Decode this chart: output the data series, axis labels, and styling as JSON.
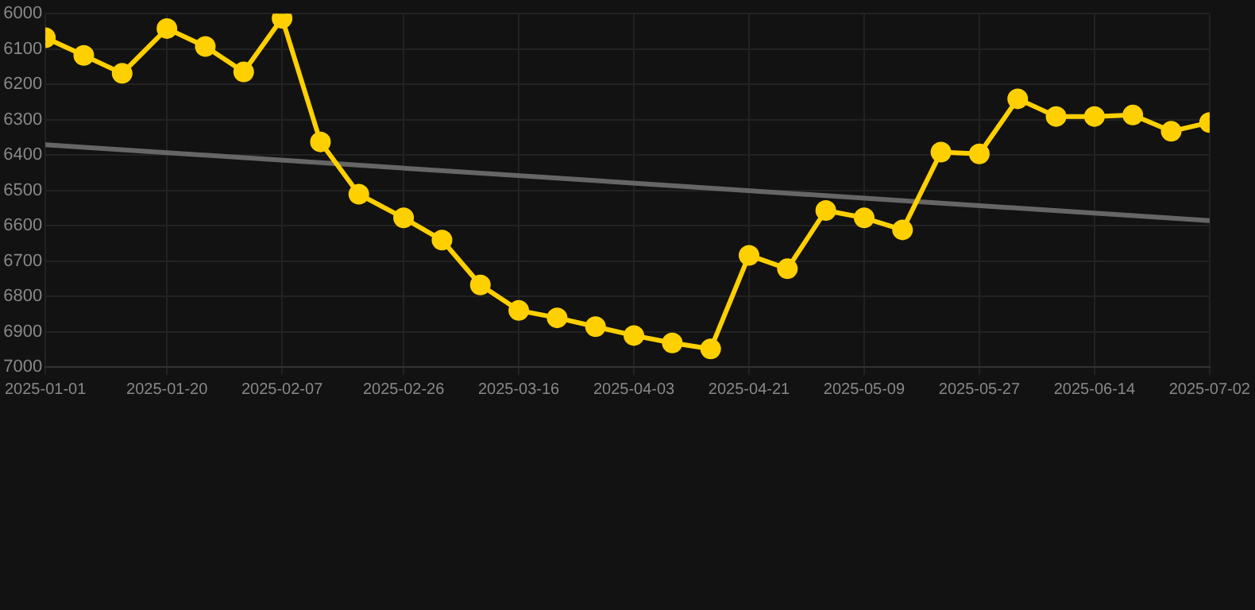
{
  "chart_data": {
    "type": "line",
    "x": [
      "2025-01-01",
      "2025-01-07",
      "2025-01-13",
      "2025-01-20",
      "2025-01-26",
      "2025-02-01",
      "2025-02-07",
      "2025-02-13",
      "2025-02-19",
      "2025-02-26",
      "2025-03-04",
      "2025-03-10",
      "2025-03-16",
      "2025-03-22",
      "2025-03-28",
      "2025-04-03",
      "2025-04-09",
      "2025-04-15",
      "2025-04-21",
      "2025-04-27",
      "2025-05-03",
      "2025-05-09",
      "2025-05-15",
      "2025-05-21",
      "2025-05-27",
      "2025-06-02",
      "2025-06-08",
      "2025-06-14",
      "2025-06-20",
      "2025-06-26",
      "2025-07-02"
    ],
    "series": [
      {
        "color": "#ffd000",
        "marker": "circle",
        "values": [
          6068,
          6118,
          6169,
          6042,
          6093,
          6165,
          6013,
          6363,
          6511,
          6578,
          6641,
          6768,
          6840,
          6861,
          6886,
          6911,
          6932,
          6949,
          6684,
          6722,
          6557,
          6578,
          6612,
          6392,
          6397,
          6241,
          6291,
          6291,
          6287,
          6333,
          6308
        ]
      },
      {
        "type": "line",
        "color": "#666666",
        "marker": "none",
        "x": [
          "2025-01-01",
          "2025-07-02"
        ],
        "values": [
          6371,
          6586
        ]
      }
    ],
    "xlim": [
      "2025-01-01",
      "2025-07-02"
    ],
    "xticks": [
      "2025-01-01",
      "2025-01-20",
      "2025-02-07",
      "2025-02-26",
      "2025-03-16",
      "2025-04-03",
      "2025-04-21",
      "2025-05-09",
      "2025-05-27",
      "2025-06-14",
      "2025-07-02"
    ],
    "ylim": [
      7000,
      6000
    ],
    "yticks": [
      6000,
      6100,
      6200,
      6300,
      6400,
      6500,
      6600,
      6700,
      6800,
      6900,
      7000
    ],
    "grid": true,
    "legend": false,
    "line_style": "solid"
  }
}
